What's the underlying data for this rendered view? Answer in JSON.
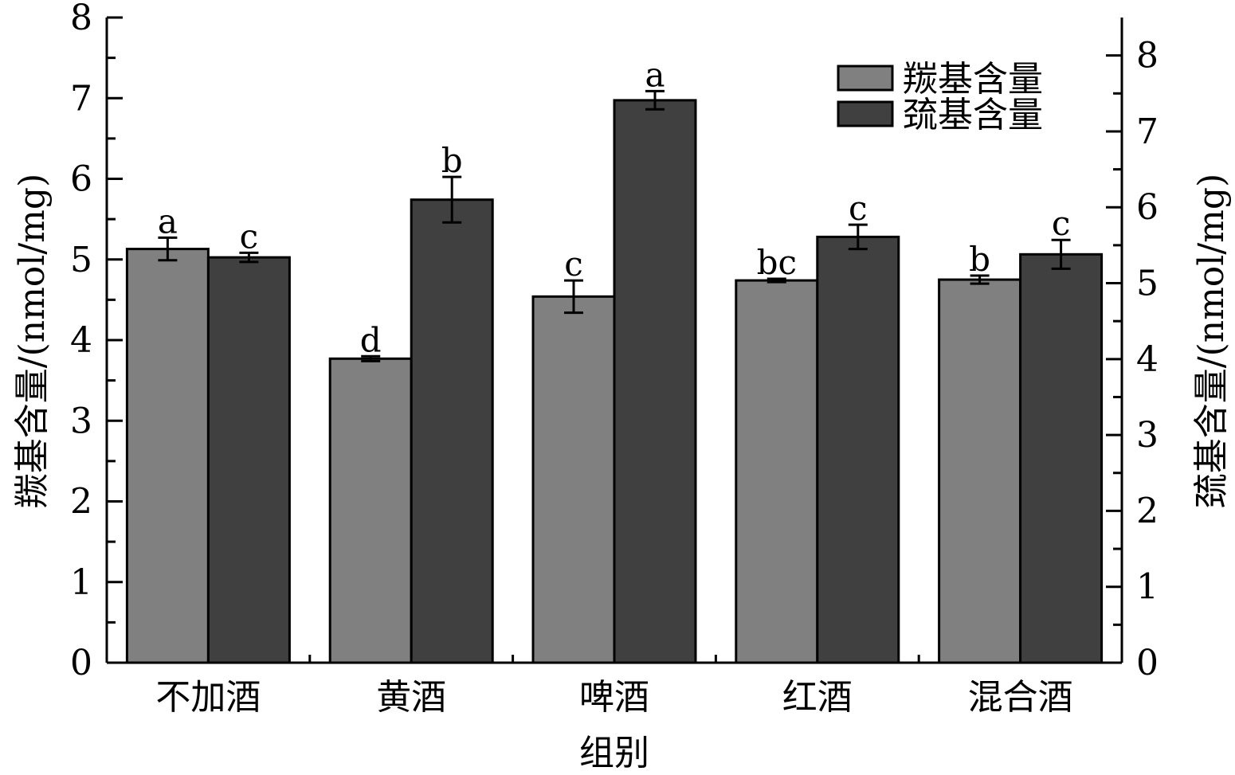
{
  "chart_data": {
    "type": "bar",
    "title": "",
    "xlabel": "组别",
    "ylabel": "羰基含量/(nmol/mg)",
    "y2label": "巯基含量/(nmol/mg)",
    "categories": [
      "不加酒",
      "黄酒",
      "啤酒",
      "红酒",
      "混合酒"
    ],
    "ylim": [
      0,
      8
    ],
    "y2lim": [
      0,
      8.5
    ],
    "yticks": [
      0,
      1,
      2,
      3,
      4,
      5,
      6,
      7,
      8
    ],
    "y2ticks": [
      0,
      1,
      2,
      3,
      4,
      5,
      6,
      7,
      8
    ],
    "legend_position": "top-right",
    "grid": false,
    "series": [
      {
        "name": "羰基含量",
        "axis": "left",
        "color": "#808080",
        "values": [
          5.13,
          3.77,
          4.54,
          4.74,
          4.75
        ],
        "errors": [
          0.14,
          0.03,
          0.2,
          0.02,
          0.05
        ],
        "letters": [
          "a",
          "d",
          "c",
          "bc",
          "b"
        ]
      },
      {
        "name": "巯基含量",
        "axis": "right",
        "color": "#404040",
        "values": [
          5.34,
          6.1,
          7.41,
          5.61,
          5.38
        ],
        "errors": [
          0.06,
          0.3,
          0.12,
          0.16,
          0.19
        ],
        "letters": [
          "c",
          "b",
          "a",
          "c",
          "c"
        ]
      }
    ]
  }
}
